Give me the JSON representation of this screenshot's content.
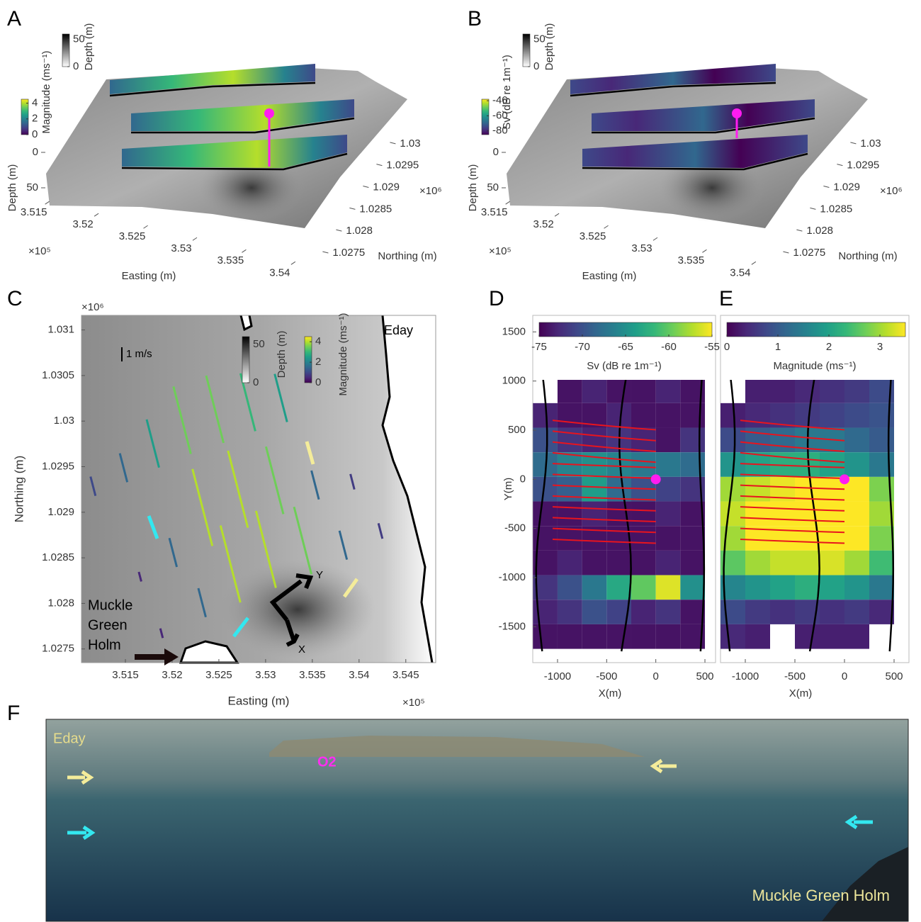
{
  "chart_data": [
    {
      "type": "surface3d",
      "panel_label": "A",
      "xlabel": "Easting (m)",
      "ylabel": "Northing (m)",
      "zlabel": "Depth (m)",
      "xlim": [
        3.512,
        3.543
      ],
      "xticks": [
        3.515,
        3.52,
        3.525,
        3.53,
        3.535,
        3.54
      ],
      "x_exponent": "×10⁵",
      "ylim": [
        1.0272,
        1.0302
      ],
      "yticks": [
        1.0275,
        1.028,
        1.0285,
        1.029,
        1.0295,
        1.03
      ],
      "y_exponent": "×10⁶",
      "zlim": [
        -10,
        70
      ],
      "zticks": [
        0,
        50
      ],
      "colorbars": [
        {
          "label": "Depth (m)",
          "lim": [
            0,
            60
          ],
          "ticks": [
            0,
            50
          ],
          "colormap": "gray"
        },
        {
          "label": "Magnitude (ms⁻¹)",
          "lim": [
            0,
            4.5
          ],
          "ticks": [
            0,
            2,
            4
          ],
          "colormap": "viridis"
        }
      ]
    },
    {
      "type": "surface3d",
      "panel_label": "B",
      "xlabel": "Easting (m)",
      "ylabel": "Northing (m)",
      "zlabel": "Depth (m)",
      "xlim": [
        3.512,
        3.543
      ],
      "xticks": [
        3.515,
        3.52,
        3.525,
        3.53,
        3.535,
        3.54
      ],
      "x_exponent": "×10⁵",
      "ylim": [
        1.0272,
        1.0302
      ],
      "yticks": [
        1.0275,
        1.028,
        1.0285,
        1.029,
        1.0295,
        1.03
      ],
      "y_exponent": "×10⁶",
      "zlim": [
        -10,
        70
      ],
      "zticks": [
        0,
        50
      ],
      "colorbars": [
        {
          "label": "Depth (m)",
          "lim": [
            0,
            60
          ],
          "ticks": [
            0,
            50
          ],
          "colormap": "gray"
        },
        {
          "label": "Sv (dB re 1m⁻¹)",
          "lim": [
            -85,
            -38
          ],
          "ticks": [
            -80,
            -60,
            -40
          ],
          "colormap": "viridis"
        }
      ]
    },
    {
      "type": "quiver",
      "panel_label": "C",
      "xlabel": "Easting (m)",
      "ylabel": "Northing (m)",
      "xlim": [
        3.5103,
        3.5482
      ],
      "xticks": [
        3.515,
        3.52,
        3.525,
        3.53,
        3.535,
        3.54,
        3.545
      ],
      "x_exponent": "×10⁵",
      "ylim": [
        1.02735,
        1.03116
      ],
      "yticks": [
        1.0275,
        1.028,
        1.0285,
        1.029,
        1.0295,
        1.03,
        1.0305,
        1.031
      ],
      "y_exponent": "×10⁶",
      "annotations": {
        "island": "Eday",
        "scale": "1 m/s",
        "holm": [
          "Muckle",
          "Green",
          "Holm"
        ],
        "axis_y": "Y",
        "axis_x": "X"
      },
      "colorbars": [
        {
          "label": "Depth (m)",
          "lim": [
            0,
            60
          ],
          "ticks": [
            0,
            50
          ],
          "colormap": "gray"
        },
        {
          "label": "Magnitude (ms⁻¹)",
          "lim": [
            0,
            4.5
          ],
          "ticks": [
            0,
            2,
            4
          ],
          "colormap": "viridis"
        }
      ],
      "series": [
        {
          "x": [
            3.5118,
            3.5152,
            3.5186,
            3.522,
            3.5255,
            3.5289,
            3.5323
          ],
          "y": [
            1.02918,
            1.02933,
            1.02949,
            1.02964,
            1.02976,
            1.02989,
            1.02999
          ],
          "values": [
            1,
            1.5,
            2.5,
            3.5,
            3.5,
            3,
            2.5
          ]
        },
        {
          "x": [
            3.5167,
            3.5205,
            3.5243,
            3.5281,
            3.5319,
            3.5357,
            3.5395
          ],
          "y": [
            1.02824,
            1.0284,
            1.02863,
            1.02883,
            1.02898,
            1.02914,
            1.02925
          ],
          "values": [
            0.5,
            1.5,
            4,
            4,
            3.5,
            1.5,
            0.8
          ]
        },
        {
          "x": [
            3.519,
            3.5236,
            3.5273,
            3.5311,
            3.5349,
            3.5387,
            3.5425
          ],
          "y": [
            1.02762,
            1.02785,
            1.02801,
            1.02817,
            1.02832,
            1.02848,
            1.02871
          ],
          "values": [
            0.5,
            1.5,
            4,
            4,
            3.5,
            1.5,
            0.8
          ]
        }
      ]
    },
    {
      "type": "heatmap",
      "panel_label": "D",
      "xlabel": "X(m)",
      "ylabel": "Y(m)",
      "xlim": [
        -1252,
        608
      ],
      "xticks": [
        -1000,
        -500,
        0,
        500
      ],
      "ylim": [
        -1865,
        1668
      ],
      "yticks": [
        -1500,
        -1000,
        -500,
        0,
        500,
        1000,
        1500
      ],
      "x": [
        -1125,
        -875,
        -625,
        -375,
        -125,
        125,
        375
      ],
      "y": [
        900,
        650,
        400,
        150,
        -100,
        -350,
        -600,
        -850,
        -1100,
        -1350,
        -1600
      ],
      "values": [
        [
          null,
          -74,
          -73,
          -74,
          -74,
          -73,
          -74
        ],
        [
          -73,
          -74,
          -74,
          -73,
          -74,
          -74,
          -74
        ],
        [
          -70,
          -72,
          -73,
          -72,
          -73,
          -74,
          -72
        ],
        [
          -68,
          -66,
          -65,
          -66,
          -67,
          -67,
          -68
        ],
        [
          -70,
          -69,
          -64,
          -68,
          -70,
          -71,
          -72
        ],
        [
          -74,
          -74,
          -73,
          -74,
          -74,
          -73,
          -74
        ],
        [
          -74,
          -74,
          -74,
          -74,
          -74,
          -74,
          -74
        ],
        [
          -74,
          -73,
          -74,
          -74,
          -74,
          -73,
          -74
        ],
        [
          -72,
          -70,
          -67,
          -63,
          -60,
          -56,
          -65
        ],
        [
          -73,
          -72,
          -70,
          -71,
          -73,
          -72,
          -74
        ],
        [
          -74,
          -74,
          -74,
          -74,
          -74,
          -74,
          -74
        ]
      ],
      "colorbar": {
        "label": "Sv (dB re 1m⁻¹)",
        "lim": [
          -75,
          -55
        ],
        "ticks": [
          -75,
          -70,
          -65,
          -60,
          -55
        ],
        "colormap": "viridis"
      }
    },
    {
      "type": "heatmap",
      "panel_label": "E",
      "xlabel": "X(m)",
      "xlim": [
        -1250,
        650
      ],
      "xticks": [
        -1000,
        -500,
        0,
        500
      ],
      "ylim": [
        -1865,
        1668
      ],
      "x": [
        -1125,
        -875,
        -625,
        -375,
        -125,
        125,
        375
      ],
      "y": [
        900,
        650,
        400,
        150,
        -100,
        -350,
        -600,
        -850,
        -1100,
        -1350,
        -1600
      ],
      "values": [
        [
          null,
          0.3,
          0.3,
          0.4,
          0.5,
          0.6,
          0.8
        ],
        [
          0.3,
          0.4,
          0.5,
          0.6,
          0.7,
          0.8,
          0.9
        ],
        [
          0.8,
          1.0,
          1.2,
          1.4,
          1.4,
          1.2,
          1.0
        ],
        [
          1.8,
          2.0,
          2.2,
          2.2,
          2.0,
          1.8,
          1.4
        ],
        [
          3.0,
          3.2,
          3.4,
          3.5,
          3.5,
          3.5,
          2.8
        ],
        [
          3.2,
          3.5,
          3.5,
          3.5,
          3.5,
          3.5,
          3.0
        ],
        [
          3.0,
          3.5,
          3.5,
          3.5,
          3.5,
          3.5,
          2.8
        ],
        [
          2.6,
          3.0,
          3.2,
          3.2,
          3.3,
          3.0,
          2.4
        ],
        [
          1.6,
          1.8,
          2.0,
          2.2,
          2.0,
          1.8,
          1.4
        ],
        [
          0.8,
          0.6,
          0.5,
          0.6,
          0.5,
          0.6,
          0.4
        ],
        [
          0.4,
          0.3,
          null,
          0.3,
          0.3,
          0.3,
          null
        ]
      ],
      "colorbar": {
        "label": "Magnitude (ms⁻¹)",
        "lim": [
          0,
          3.5
        ],
        "ticks": [
          0,
          1,
          2,
          3
        ],
        "colormap": "viridis"
      }
    },
    {
      "type": "photo",
      "panel_label": "F",
      "annotations": {
        "island": "Eday",
        "site": "O2",
        "holm": "Muckle Green Holm"
      }
    }
  ]
}
